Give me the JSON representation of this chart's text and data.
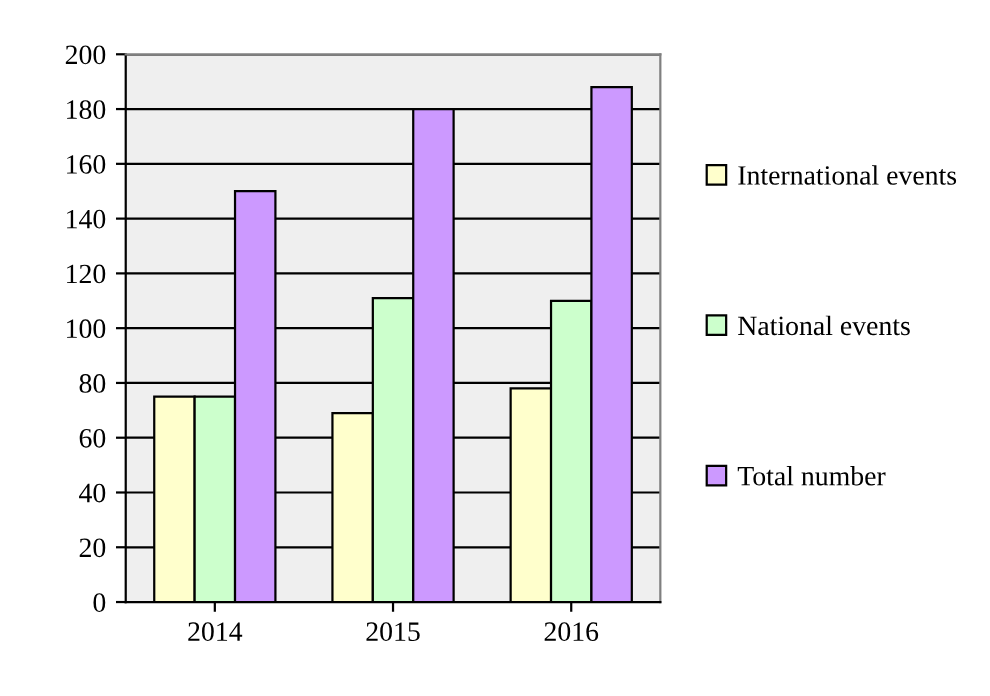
{
  "chart_data": {
    "type": "bar",
    "categories": [
      "2014",
      "2015",
      "2016"
    ],
    "series": [
      {
        "name": "International events",
        "color": "#ffffcc",
        "values": [
          75,
          69,
          78
        ]
      },
      {
        "name": "National events",
        "color": "#ccffcc",
        "values": [
          75,
          111,
          110
        ]
      },
      {
        "name": "Total number",
        "color": "#cc99ff",
        "values": [
          150,
          180,
          188
        ]
      }
    ],
    "ylim": [
      0,
      200
    ],
    "yticks": [
      0,
      20,
      40,
      60,
      80,
      100,
      120,
      140,
      160,
      180,
      200
    ],
    "grid": "y",
    "legend": "right"
  }
}
